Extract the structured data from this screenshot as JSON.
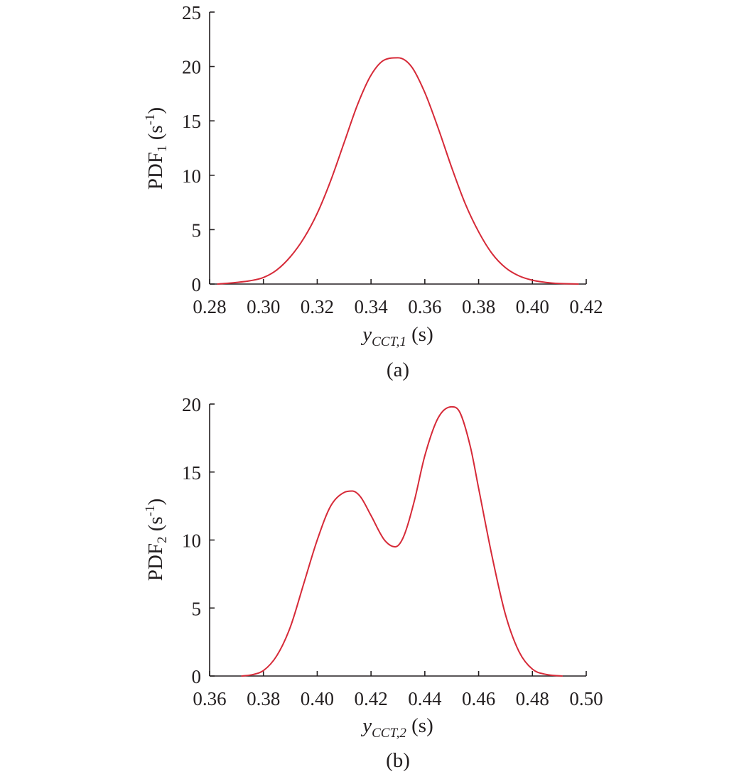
{
  "chart_data": [
    {
      "type": "line",
      "caption": "(a)",
      "ylabel": {
        "main": "PDF",
        "sub": "1",
        "unit_open": " (s",
        "unit_sup": "-1",
        "unit_close": ")"
      },
      "xlabel": {
        "main": "y",
        "sub": "CCT,1",
        "unit": " (s)"
      },
      "xlim": [
        0.28,
        0.42
      ],
      "ylim": [
        0,
        25
      ],
      "xticks": [
        "0.28",
        "0.30",
        "0.32",
        "0.34",
        "0.36",
        "0.38",
        "0.40",
        "0.42"
      ],
      "yticks": [
        "0",
        "5",
        "10",
        "15",
        "20",
        "25"
      ],
      "series_color": "#d62a38",
      "series": [
        {
          "x": [
            0.283,
            0.29,
            0.295,
            0.3,
            0.305,
            0.31,
            0.315,
            0.32,
            0.325,
            0.33,
            0.335,
            0.34,
            0.345,
            0.35,
            0.355,
            0.36,
            0.365,
            0.37,
            0.375,
            0.38,
            0.385,
            0.39,
            0.395,
            0.4,
            0.405,
            0.41,
            0.417
          ],
          "y": [
            0.0,
            0.15,
            0.3,
            0.6,
            1.3,
            2.5,
            4.2,
            6.5,
            9.5,
            13.0,
            16.5,
            19.2,
            20.6,
            20.8,
            20.0,
            17.6,
            14.3,
            10.7,
            7.4,
            4.8,
            2.8,
            1.5,
            0.75,
            0.35,
            0.15,
            0.05,
            0.0
          ]
        }
      ]
    },
    {
      "type": "line",
      "caption": "(b)",
      "ylabel": {
        "main": "PDF",
        "sub": "2",
        "unit_open": " (s",
        "unit_sup": "-1",
        "unit_close": ")"
      },
      "xlabel": {
        "main": "y",
        "sub": "CCT,2",
        "unit": " (s)"
      },
      "xlim": [
        0.36,
        0.5
      ],
      "ylim": [
        0,
        20
      ],
      "xticks": [
        "0.36",
        "0.38",
        "0.40",
        "0.42",
        "0.44",
        "0.46",
        "0.48",
        "0.50"
      ],
      "yticks": [
        "0",
        "5",
        "10",
        "15",
        "20"
      ],
      "series_color": "#d62a38",
      "series": [
        {
          "x": [
            0.372,
            0.376,
            0.38,
            0.385,
            0.39,
            0.395,
            0.4,
            0.405,
            0.41,
            0.413,
            0.416,
            0.42,
            0.425,
            0.429,
            0.432,
            0.436,
            0.44,
            0.445,
            0.45,
            0.453,
            0.457,
            0.46,
            0.465,
            0.47,
            0.475,
            0.48,
            0.485,
            0.491
          ],
          "y": [
            0.0,
            0.1,
            0.4,
            1.5,
            3.6,
            6.8,
            10.0,
            12.5,
            13.5,
            13.6,
            13.2,
            11.8,
            10.0,
            9.5,
            10.2,
            12.8,
            16.2,
            19.0,
            19.8,
            19.4,
            16.8,
            13.8,
            8.8,
            4.5,
            1.8,
            0.5,
            0.12,
            0.0
          ]
        }
      ]
    }
  ]
}
